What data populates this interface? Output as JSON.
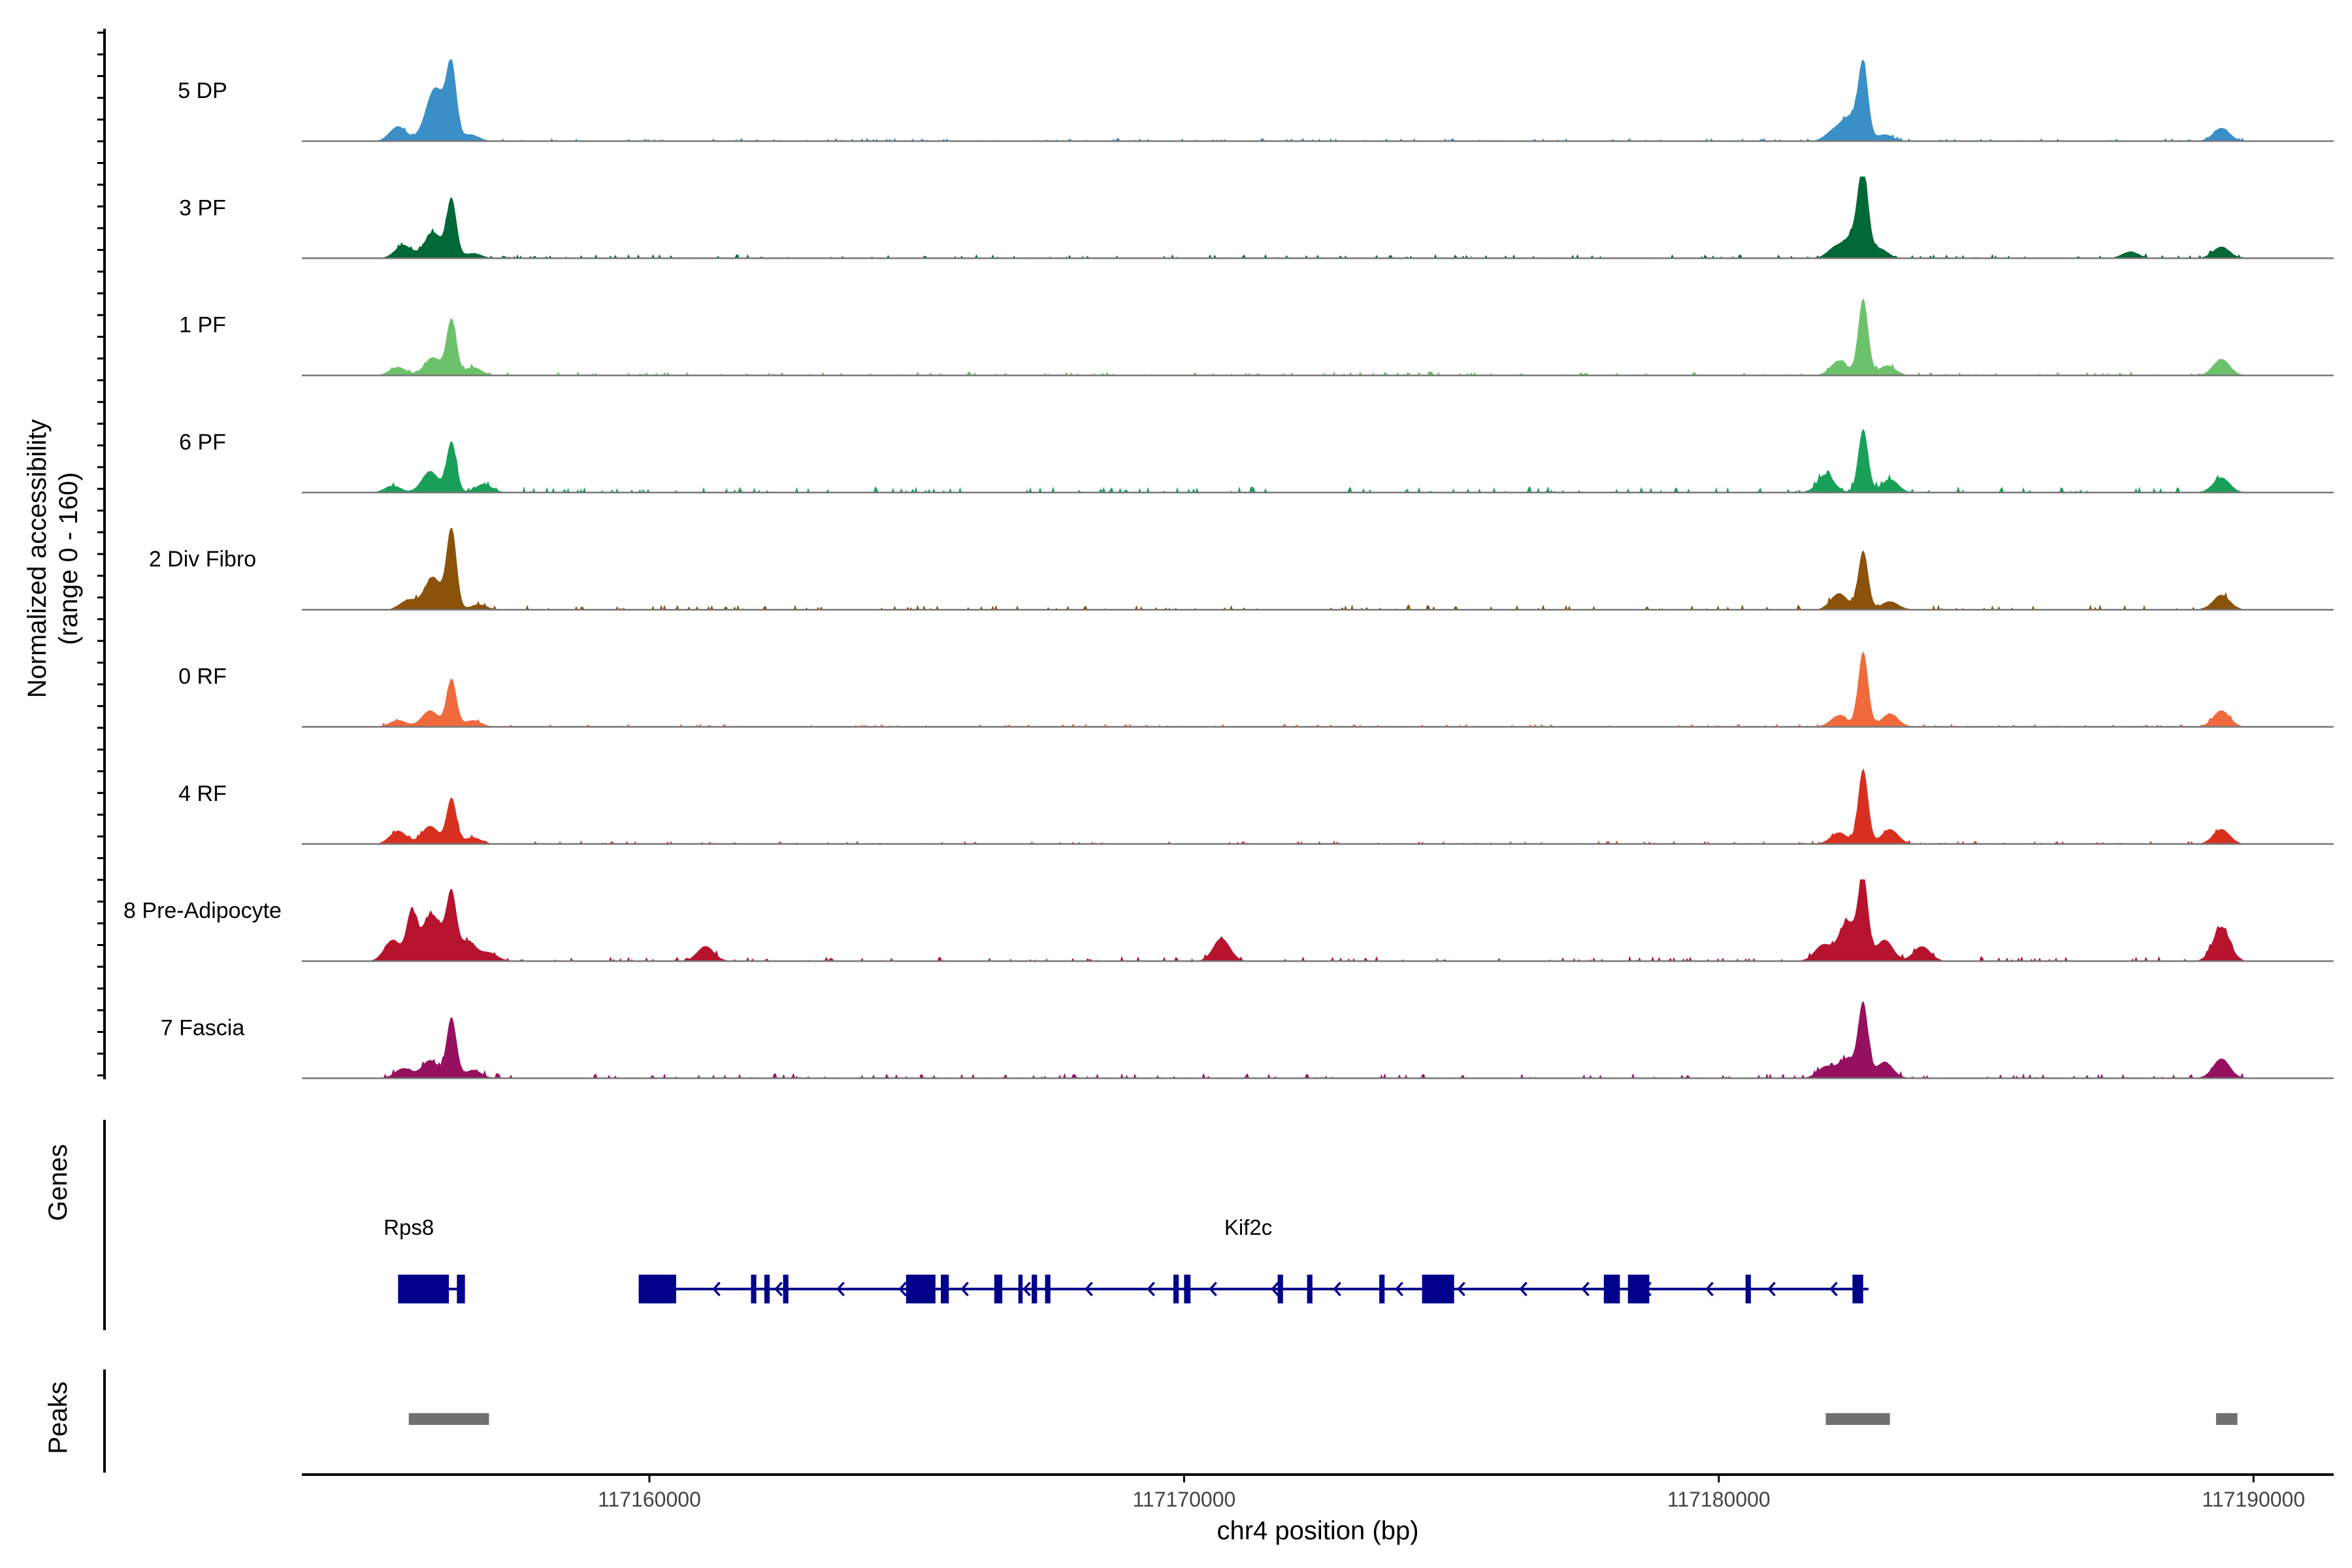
{
  "chart_data": {
    "type": "area",
    "ylabel": "Normalized accessibility",
    "ylabel_range": "(range 0 - 160)",
    "ylim": [
      0,
      160
    ],
    "xlabel": "chr4 position (bp)",
    "xlim": [
      117153500,
      117191500
    ],
    "x_ticks": [
      117160000,
      117170000,
      117180000,
      117190000
    ],
    "x_tick_labels": [
      "117160000",
      "117170000",
      "117180000",
      "117190000"
    ],
    "tracks": [
      {
        "name": "5 DP",
        "color": "#3a8fc7",
        "peaks": [
          [
            117155300,
            0.18
          ],
          [
            117155900,
            0.28
          ],
          [
            117156050,
            0.45
          ],
          [
            117156300,
            0.88
          ],
          [
            117156650,
            0.08
          ],
          [
            117182150,
            0.12
          ],
          [
            117182450,
            0.28
          ],
          [
            117182700,
            0.92
          ],
          [
            117183100,
            0.08
          ],
          [
            117189400,
            0.16
          ]
        ],
        "noise": 0.03
      },
      {
        "name": "3 PF",
        "color": "#006837",
        "peaks": [
          [
            117155400,
            0.16
          ],
          [
            117155950,
            0.32
          ],
          [
            117156300,
            0.72
          ],
          [
            117156700,
            0.06
          ],
          [
            117182200,
            0.14
          ],
          [
            117182550,
            0.3
          ],
          [
            117182700,
            0.95
          ],
          [
            117183000,
            0.12
          ],
          [
            117187700,
            0.08
          ],
          [
            117189400,
            0.14
          ]
        ],
        "noise": 0.04
      },
      {
        "name": "1 PF",
        "color": "#6cc26a",
        "peaks": [
          [
            117155300,
            0.1
          ],
          [
            117155950,
            0.22
          ],
          [
            117156300,
            0.68
          ],
          [
            117156700,
            0.1
          ],
          [
            117182250,
            0.18
          ],
          [
            117182700,
            0.94
          ],
          [
            117183150,
            0.12
          ],
          [
            117189400,
            0.2
          ]
        ],
        "noise": 0.04
      },
      {
        "name": "6 PF",
        "color": "#18a058",
        "peaks": [
          [
            117155200,
            0.08
          ],
          [
            117155900,
            0.26
          ],
          [
            117156300,
            0.62
          ],
          [
            117156900,
            0.1
          ],
          [
            117182000,
            0.22
          ],
          [
            117182700,
            0.78
          ],
          [
            117183200,
            0.16
          ],
          [
            117189400,
            0.18
          ]
        ],
        "noise": 0.06
      },
      {
        "name": "2 Div Fibro",
        "color": "#8b520a",
        "peaks": [
          [
            117155500,
            0.12
          ],
          [
            117155950,
            0.4
          ],
          [
            117156300,
            1.0
          ],
          [
            117156800,
            0.06
          ],
          [
            117182250,
            0.2
          ],
          [
            117182700,
            0.72
          ],
          [
            117183200,
            0.1
          ],
          [
            117189400,
            0.18
          ]
        ],
        "noise": 0.05
      },
      {
        "name": "0 RF",
        "color": "#f06a3c",
        "peaks": [
          [
            117155300,
            0.08
          ],
          [
            117155900,
            0.2
          ],
          [
            117156300,
            0.58
          ],
          [
            117156700,
            0.08
          ],
          [
            117182250,
            0.14
          ],
          [
            117182700,
            0.92
          ],
          [
            117183200,
            0.16
          ],
          [
            117189400,
            0.2
          ]
        ],
        "noise": 0.03
      },
      {
        "name": "4 RF",
        "color": "#d7301f",
        "peaks": [
          [
            117155300,
            0.16
          ],
          [
            117155900,
            0.22
          ],
          [
            117156300,
            0.56
          ],
          [
            117156700,
            0.08
          ],
          [
            117182250,
            0.14
          ],
          [
            117182700,
            0.92
          ],
          [
            117183200,
            0.18
          ],
          [
            117189400,
            0.18
          ]
        ],
        "noise": 0.03
      },
      {
        "name": "8 Pre-Adipocyte",
        "color": "#b5132e",
        "peaks": [
          [
            117155200,
            0.26
          ],
          [
            117155550,
            0.56
          ],
          [
            117155850,
            0.4
          ],
          [
            117156050,
            0.3
          ],
          [
            117156300,
            0.76
          ],
          [
            117156600,
            0.24
          ],
          [
            117157000,
            0.1
          ],
          [
            117161050,
            0.18
          ],
          [
            117170700,
            0.28
          ],
          [
            117181950,
            0.2
          ],
          [
            117182400,
            0.48
          ],
          [
            117182700,
            1.0
          ],
          [
            117183100,
            0.26
          ],
          [
            117183800,
            0.18
          ],
          [
            117189400,
            0.42
          ]
        ],
        "noise": 0.05
      },
      {
        "name": "7 Fascia",
        "color": "#961060",
        "peaks": [
          [
            117155400,
            0.12
          ],
          [
            117155900,
            0.22
          ],
          [
            117156300,
            0.74
          ],
          [
            117156700,
            0.1
          ],
          [
            117182000,
            0.14
          ],
          [
            117182400,
            0.24
          ],
          [
            117182700,
            0.9
          ],
          [
            117183100,
            0.2
          ],
          [
            117189400,
            0.24
          ]
        ],
        "noise": 0.05
      }
    ],
    "genes_label": "Genes",
    "genes": [
      {
        "name": "Rps8",
        "label_x": 117155500,
        "start": 117155300,
        "end": 117156550,
        "strand": "-",
        "exons": [
          [
            117155300,
            117156250
          ],
          [
            117156400,
            117156550
          ]
        ]
      },
      {
        "name": "Kif2c",
        "label_x": 117171200,
        "start": 117159800,
        "end": 117182800,
        "strand": "-",
        "exons": [
          [
            117159800,
            117160500
          ],
          [
            117161900,
            117162000
          ],
          [
            117162150,
            117162250
          ],
          [
            117162500,
            117162600
          ],
          [
            117164800,
            117165350
          ],
          [
            117165450,
            117165600
          ],
          [
            117166450,
            117166600
          ],
          [
            117166900,
            117166980
          ],
          [
            117167150,
            117167250
          ],
          [
            117167400,
            117167500
          ],
          [
            117169800,
            117169900
          ],
          [
            117170000,
            117170120
          ],
          [
            117171750,
            117171850
          ],
          [
            117172300,
            117172400
          ],
          [
            117173650,
            117173750
          ],
          [
            117174450,
            117175050
          ],
          [
            117177850,
            117178150
          ],
          [
            117178300,
            117178700
          ],
          [
            117180500,
            117180600
          ],
          [
            117182500,
            117182700
          ]
        ]
      }
    ],
    "peaks_label": "Peaks",
    "peak_regions": [
      [
        117155500,
        117157000
      ],
      [
        117182000,
        117183200
      ],
      [
        117189300,
        117189700
      ]
    ],
    "grid": false
  }
}
